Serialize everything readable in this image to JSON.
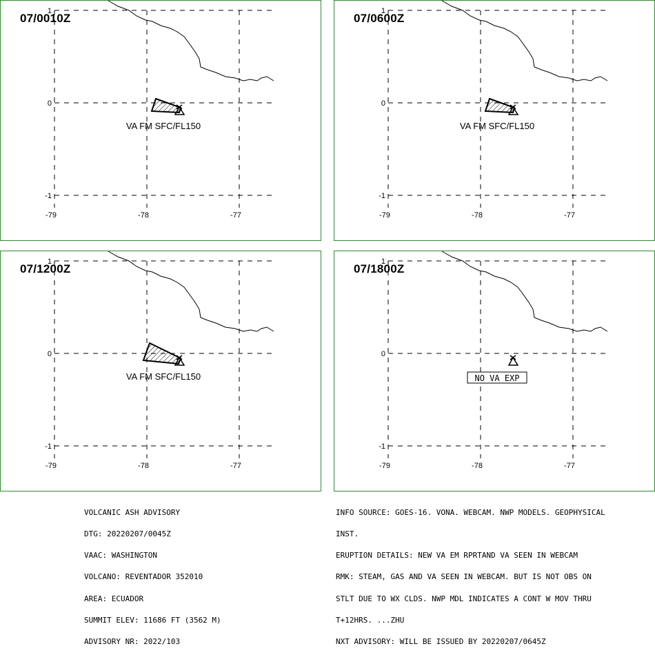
{
  "panels": [
    {
      "time": "07/0010Z",
      "label": "VA FM SFC/FL150",
      "no_va": false
    },
    {
      "time": "07/0600Z",
      "label": "VA FM SFC/FL150",
      "no_va": false
    },
    {
      "time": "07/1200Z",
      "label": "VA FM SFC/FL150",
      "no_va": false
    },
    {
      "time": "07/1800Z",
      "label": "NO VA EXP",
      "no_va": true
    }
  ],
  "axes": {
    "lon_ticks": [
      "-79",
      "-78",
      "-77"
    ],
    "lat_ticks": [
      "1",
      "0",
      "-1"
    ]
  },
  "advisory_left": [
    "VOLCANIC ASH ADVISORY",
    "DTG: 20220207/0045Z",
    "VAAC: WASHINGTON",
    "VOLCANO: REVENTADOR 352010",
    "AREA: ECUADOR",
    "SUMMIT ELEV: 11686 FT (3562 M)",
    "ADVISORY NR: 2022/103"
  ],
  "advisory_right": [
    "INFO SOURCE: GOES-16. VONA. WEBCAM. NWP MODELS. GEOPHYSICAL",
    "INST.",
    "ERUPTION DETAILS: NEW VA EM RPRTAND VA SEEN IN WEBCAM",
    "RMK: STEAM, GAS AND VA SEEN IN WEBCAM. BUT IS NOT OBS ON",
    "STLT DUE TO WX CLDS. NWP MDL INDICATES A CONT W MOV THRU",
    "T+12HRS. ...ZHU",
    "NXT ADVISORY: WILL BE ISSUED BY 20220207/0645Z"
  ],
  "colors": {
    "frame": "#2e8b2e",
    "ink": "#000000"
  }
}
